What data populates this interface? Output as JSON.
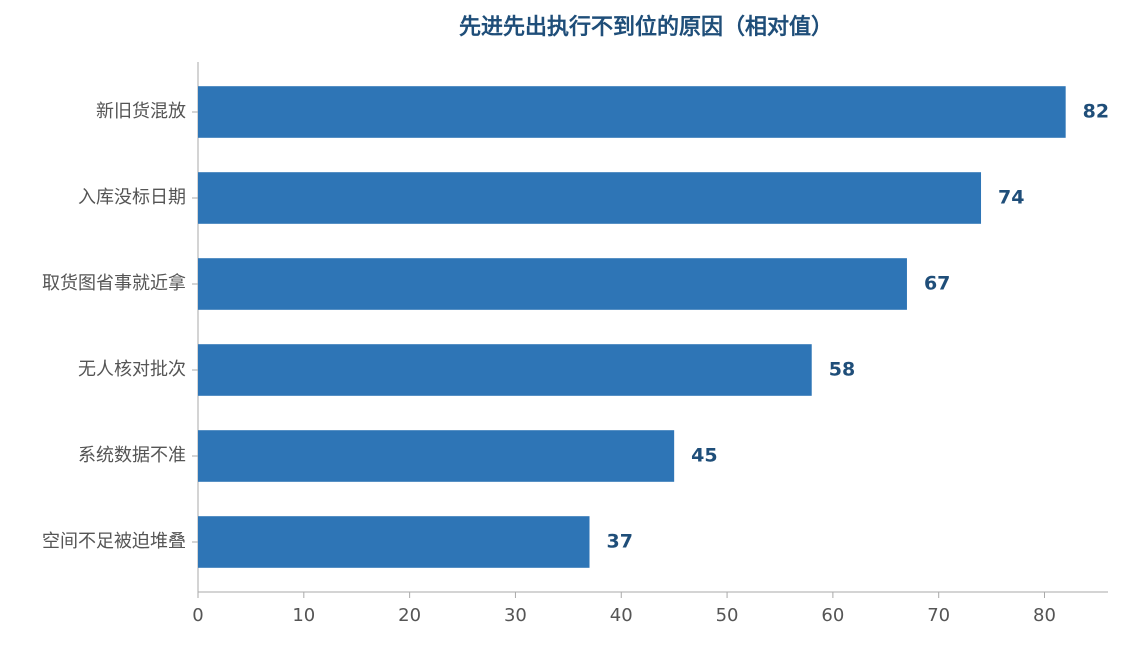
{
  "chart_data": {
    "type": "barh",
    "title": "先进先出执行不到位的原因（相对值）",
    "categories": [
      "新旧货混放",
      "入库没标日期",
      "取货图省事就近拿",
      "无人核对批次",
      "系统数据不准",
      "空间不足被迫堆叠"
    ],
    "values": [
      82,
      74,
      67,
      58,
      45,
      37
    ],
    "color": "#2e75b6",
    "xlim": [
      0,
      86
    ],
    "xticks": [
      0,
      10,
      20,
      30,
      40,
      50,
      60,
      70,
      80
    ],
    "grid": false
  }
}
